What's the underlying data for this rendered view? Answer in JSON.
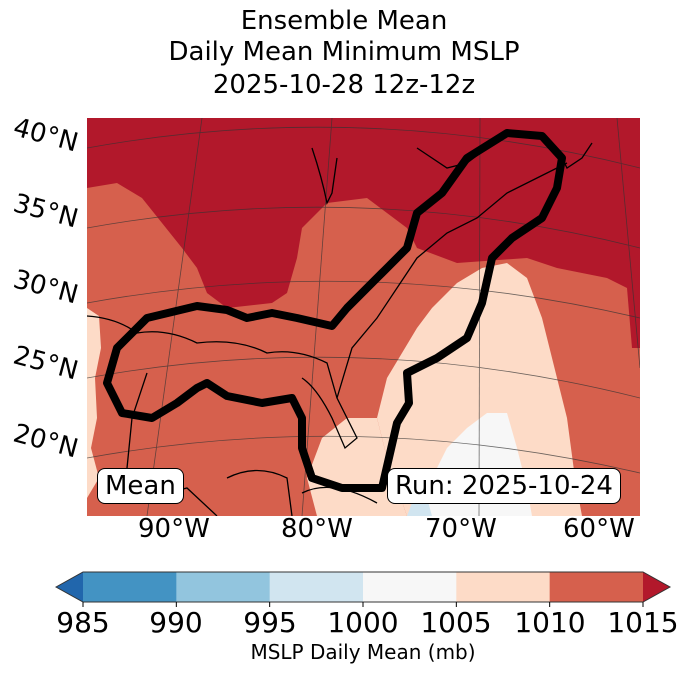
{
  "title": {
    "line1": "Ensemble Mean",
    "line2": "Daily Mean Minimum MSLP",
    "line3": "2025-10-28 12z-12z"
  },
  "map": {
    "lat_labels": [
      "40°N",
      "35°N",
      "30°N",
      "25°N",
      "20°N"
    ],
    "lon_labels": [
      "90°W",
      "80°W",
      "70°W",
      "60°W"
    ],
    "annotations": {
      "left": "Mean",
      "right": "Run: 2025-10-24"
    },
    "contour_color": "#000000",
    "fill_regions": [
      {
        "name": "north-high",
        "bin": "1010-1015+"
      },
      {
        "name": "mid-band",
        "bin": "1005-1010"
      },
      {
        "name": "atlantic-trough",
        "bin": "1000-1005"
      },
      {
        "name": "southern-low",
        "bin": "995-1000"
      }
    ]
  },
  "colorbar": {
    "label": "MSLP Daily Mean (mb)",
    "ticks": [
      "985",
      "990",
      "995",
      "1000",
      "1005",
      "1010",
      "1015"
    ],
    "extend": "both",
    "bins": [
      {
        "range": "<985",
        "color": "#2166ac"
      },
      {
        "range": "985-990",
        "color": "#4393c3"
      },
      {
        "range": "990-995",
        "color": "#92c5de"
      },
      {
        "range": "995-1000",
        "color": "#d1e5f0"
      },
      {
        "range": "1000-1005",
        "color": "#f7f7f7"
      },
      {
        "range": "1005-1010",
        "color": "#fddbc7"
      },
      {
        "range": "1010-1015",
        "color": "#d6604d"
      },
      {
        "range": ">1015",
        "color": "#b2182b"
      }
    ]
  }
}
